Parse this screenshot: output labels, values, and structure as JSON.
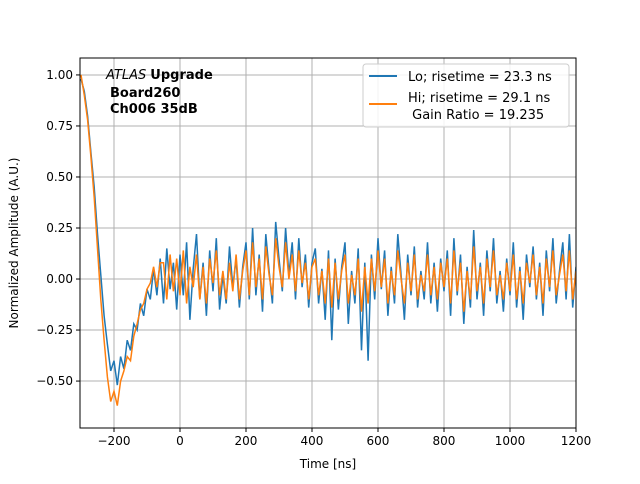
{
  "chart_data": {
    "type": "line",
    "xlabel": "Time [ns]",
    "ylabel": "Normalized Amplitude (A.U.)",
    "xlim": [
      -303,
      1200
    ],
    "ylim": [
      -0.73,
      1.083
    ],
    "xticks": [
      -200,
      0,
      200,
      400,
      600,
      800,
      1000,
      1200
    ],
    "yticks": [
      -0.5,
      -0.25,
      0.0,
      0.25,
      0.5,
      0.75,
      1.0
    ],
    "xtick_labels": [
      "−200",
      "0",
      "200",
      "400",
      "600",
      "800",
      "1000",
      "1200"
    ],
    "ytick_labels": [
      "−0.50",
      "−0.25",
      "0.00",
      "0.25",
      "0.50",
      "0.75",
      "1.00"
    ],
    "grid": true,
    "legend_position": "top-right",
    "annotation": {
      "italic": "ATLAS",
      "bold1": "Upgrade",
      "line2": "Board260",
      "line3": "Ch006 35dB"
    },
    "x": [
      -300,
      -290,
      -280,
      -270,
      -260,
      -250,
      -240,
      -230,
      -220,
      -210,
      -200,
      -190,
      -180,
      -170,
      -160,
      -150,
      -140,
      -130,
      -120,
      -110,
      -100,
      -90,
      -80,
      -70,
      -60,
      -50,
      -40,
      -30,
      -20,
      -10,
      0,
      10,
      20,
      30,
      40,
      50,
      60,
      70,
      80,
      90,
      100,
      110,
      120,
      130,
      140,
      150,
      160,
      170,
      180,
      190,
      200,
      210,
      220,
      230,
      240,
      250,
      260,
      270,
      280,
      290,
      300,
      310,
      320,
      330,
      340,
      350,
      360,
      370,
      380,
      390,
      400,
      410,
      420,
      430,
      440,
      450,
      460,
      470,
      480,
      490,
      500,
      510,
      520,
      530,
      540,
      550,
      560,
      570,
      580,
      590,
      600,
      610,
      620,
      630,
      640,
      650,
      660,
      670,
      680,
      690,
      700,
      710,
      720,
      730,
      740,
      750,
      760,
      770,
      780,
      790,
      800,
      810,
      820,
      830,
      840,
      850,
      860,
      870,
      880,
      890,
      900,
      910,
      920,
      930,
      940,
      950,
      960,
      970,
      980,
      990,
      1000,
      1010,
      1020,
      1030,
      1040,
      1050,
      1060,
      1070,
      1080,
      1090,
      1100,
      1110,
      1120,
      1130,
      1140,
      1150,
      1160,
      1170,
      1180,
      1190,
      1200
    ],
    "series": [
      {
        "name": "Lo; risetime = 23.3 ns",
        "color": "#1f77b4",
        "values": [
          0.98,
          0.92,
          0.8,
          0.62,
          0.45,
          0.22,
          0.02,
          -0.18,
          -0.32,
          -0.45,
          -0.4,
          -0.52,
          -0.38,
          -0.44,
          -0.3,
          -0.35,
          -0.22,
          -0.25,
          -0.12,
          -0.18,
          -0.05,
          -0.1,
          0.05,
          -0.08,
          0.1,
          -0.12,
          0.15,
          -0.05,
          0.08,
          -0.15,
          0.12,
          -0.08,
          0.18,
          -0.2,
          0.05,
          0.22,
          -0.1,
          0.08,
          -0.18,
          0.14,
          -0.06,
          0.2,
          -0.15,
          0.02,
          -0.12,
          0.16,
          -0.04,
          0.1,
          -0.14,
          0.06,
          0.18,
          -0.1,
          0.25,
          -0.08,
          0.12,
          -0.16,
          0.22,
          0.04,
          -0.12,
          0.28,
          0.1,
          -0.06,
          0.25,
          0.02,
          0.18,
          -0.1,
          0.2,
          -0.04,
          0.12,
          -0.14,
          0.08,
          0.15,
          -0.12,
          0.05,
          -0.2,
          0.14,
          -0.3,
          0.1,
          -0.15,
          0.06,
          0.18,
          -0.22,
          0.04,
          -0.12,
          0.15,
          -0.35,
          0.08,
          -0.4,
          0.12,
          -0.1,
          0.2,
          -0.05,
          0.14,
          -0.18,
          0.06,
          -0.12,
          0.22,
          0.02,
          -0.2,
          0.12,
          -0.08,
          0.16,
          -0.14,
          0.04,
          -0.1,
          0.18,
          -0.12,
          0.08,
          -0.16,
          0.1,
          -0.06,
          0.14,
          -0.18,
          0.2,
          -0.08,
          0.12,
          -0.22,
          0.06,
          -0.14,
          0.24,
          -0.1,
          0.08,
          -0.18,
          0.14,
          -0.06,
          0.2,
          -0.12,
          0.04,
          -0.16,
          0.1,
          -0.08,
          0.18,
          -0.14,
          0.06,
          -0.2,
          0.12,
          -0.04,
          0.16,
          -0.1,
          0.08,
          -0.18,
          0.14,
          -0.06,
          0.2,
          -0.12,
          0.04,
          0.18,
          -0.1,
          0.22,
          -0.14,
          0.06
        ]
      },
      {
        "name": "Hi; risetime = 29.1 ns",
        "name_line2": " Gain Ratio = 19.235",
        "color": "#ff7f0e",
        "values": [
          1.0,
          0.9,
          0.78,
          0.6,
          0.4,
          0.15,
          -0.1,
          -0.3,
          -0.48,
          -0.6,
          -0.55,
          -0.62,
          -0.5,
          -0.45,
          -0.38,
          -0.4,
          -0.28,
          -0.22,
          -0.15,
          -0.12,
          -0.05,
          -0.02,
          0.06,
          -0.04,
          0.08,
          0.08,
          -0.1,
          0.12,
          -0.06,
          0.1,
          -0.08,
          0.14,
          -0.12,
          0.06,
          -0.04,
          0.12,
          -0.1,
          0.06,
          -0.12,
          0.1,
          -0.02,
          0.14,
          -0.08,
          0.04,
          -0.1,
          0.08,
          -0.06,
          0.12,
          -0.1,
          0.04,
          0.14,
          -0.08,
          0.18,
          -0.04,
          0.1,
          -0.1,
          0.16,
          0.02,
          -0.08,
          0.2,
          0.06,
          -0.04,
          0.18,
          0.0,
          0.12,
          -0.06,
          0.14,
          -0.02,
          0.08,
          -0.1,
          0.06,
          0.1,
          -0.08,
          0.04,
          -0.12,
          0.1,
          -0.14,
          0.08,
          -0.1,
          0.04,
          0.12,
          -0.12,
          0.02,
          -0.08,
          0.1,
          -0.16,
          0.06,
          -0.12,
          0.1,
          -0.06,
          0.14,
          -0.04,
          0.1,
          -0.12,
          0.04,
          -0.08,
          0.14,
          0.0,
          -0.12,
          0.08,
          -0.06,
          0.12,
          -0.1,
          0.02,
          -0.06,
          0.12,
          -0.08,
          0.06,
          -0.1,
          0.08,
          -0.04,
          0.1,
          -0.12,
          0.14,
          -0.06,
          0.08,
          -0.16,
          0.04,
          -0.1,
          0.16,
          -0.06,
          0.06,
          -0.12,
          0.1,
          -0.04,
          0.14,
          -0.08,
          0.02,
          -0.1,
          0.08,
          -0.06,
          0.12,
          -0.1,
          0.04,
          -0.12,
          0.08,
          -0.02,
          0.12,
          -0.08,
          0.06,
          -0.12,
          0.1,
          -0.04,
          0.14,
          -0.08,
          0.02,
          0.12,
          -0.06,
          0.14,
          -0.1,
          0.04
        ]
      }
    ]
  }
}
